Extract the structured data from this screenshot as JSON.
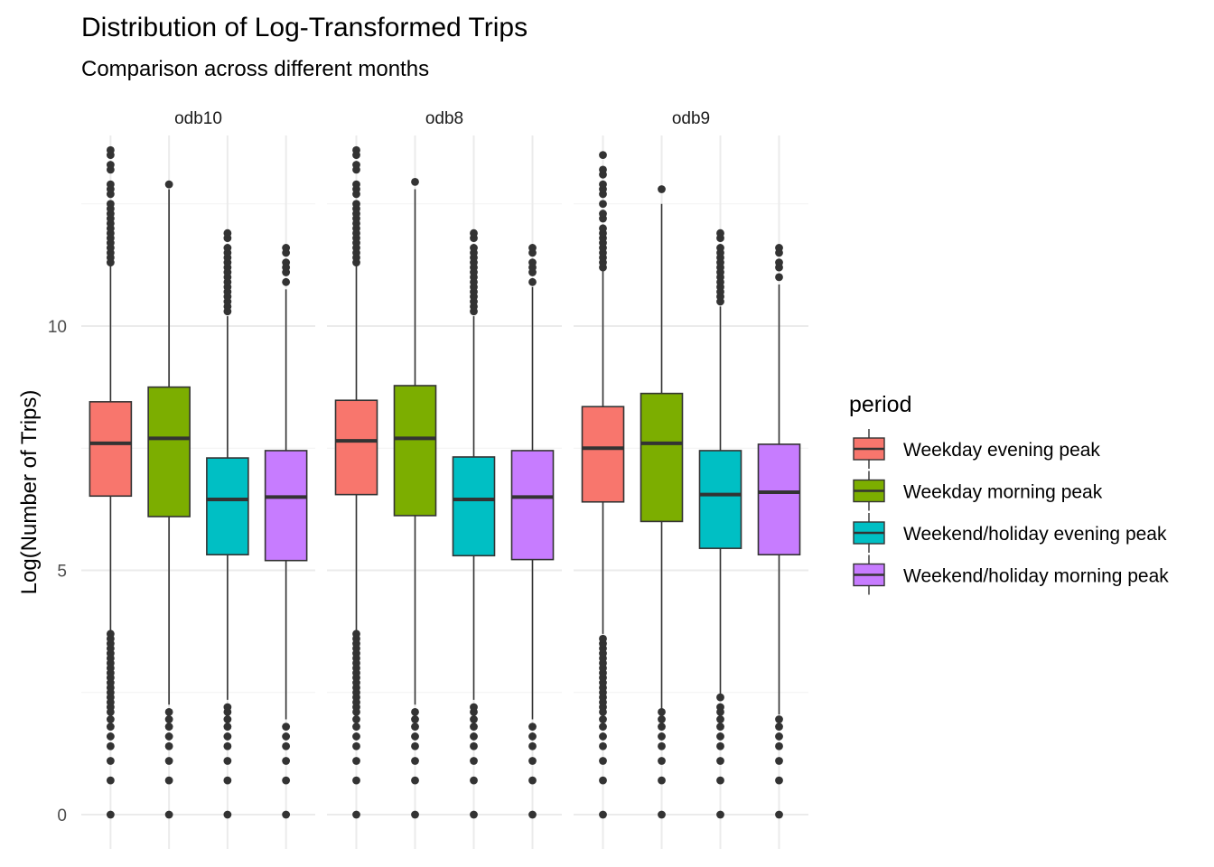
{
  "chart_data": {
    "type": "boxplot",
    "title": "Distribution of Log-Transformed Trips",
    "subtitle": "Comparison across different months",
    "ylabel": "Log(Number of Trips)",
    "xlabel": "",
    "ylim": [
      -0.65,
      14.3
    ],
    "yticks": [
      0,
      5,
      10
    ],
    "grid": true,
    "legend_position": "right",
    "legend": {
      "title": "period",
      "entries": [
        {
          "label": "Weekday evening peak",
          "color": "#F8766D"
        },
        {
          "label": "Weekday morning peak",
          "color": "#7CAE00"
        },
        {
          "label": "Weekend/holiday evening peak",
          "color": "#00BFC4"
        },
        {
          "label": "Weekend/holiday morning peak",
          "color": "#C77CFF"
        }
      ]
    },
    "facets": [
      {
        "name": "odb10",
        "boxes": [
          {
            "series": "Weekday evening peak",
            "whisker_low": 3.75,
            "q1": 6.52,
            "median": 7.6,
            "q3": 8.45,
            "whisker_high": 11.25,
            "outliers_high": [
              11.3,
              11.4,
              11.5,
              11.6,
              11.7,
              11.8,
              11.9,
              12.0,
              12.1,
              12.2,
              12.3,
              12.4,
              12.5,
              12.7,
              12.8,
              12.9,
              13.2,
              13.3,
              13.5,
              13.6
            ],
            "outliers_low": [
              0,
              0.7,
              1.1,
              1.4,
              1.6,
              1.8,
              1.95,
              2.1,
              2.2,
              2.3,
              2.4,
              2.5,
              2.6,
              2.7,
              2.8,
              2.9,
              3.0,
              3.1,
              3.2,
              3.3,
              3.4,
              3.5,
              3.6,
              3.7
            ]
          },
          {
            "series": "Weekday morning peak",
            "whisker_low": 2.25,
            "q1": 6.1,
            "median": 7.7,
            "q3": 8.75,
            "whisker_high": 12.8,
            "outliers_high": [
              12.9
            ],
            "outliers_low": [
              0,
              0.7,
              1.1,
              1.4,
              1.6,
              1.8,
              1.95,
              2.1
            ]
          },
          {
            "series": "Weekend/holiday evening peak",
            "whisker_low": 2.35,
            "q1": 5.32,
            "median": 6.45,
            "q3": 7.3,
            "whisker_high": 10.2,
            "outliers_high": [
              10.3,
              10.4,
              10.5,
              10.6,
              10.7,
              10.8,
              10.9,
              11.0,
              11.1,
              11.2,
              11.3,
              11.4,
              11.5,
              11.6,
              11.8,
              11.9
            ],
            "outliers_low": [
              0,
              0.7,
              1.1,
              1.4,
              1.6,
              1.8,
              1.95,
              2.1,
              2.2
            ]
          },
          {
            "series": "Weekend/holiday morning peak",
            "whisker_low": 1.95,
            "q1": 5.2,
            "median": 6.5,
            "q3": 7.45,
            "whisker_high": 10.75,
            "outliers_high": [
              10.9,
              11.1,
              11.2,
              11.3,
              11.5,
              11.6
            ],
            "outliers_low": [
              0,
              0.7,
              1.1,
              1.4,
              1.6,
              1.8
            ]
          }
        ]
      },
      {
        "name": "odb8",
        "boxes": [
          {
            "series": "Weekday evening peak",
            "whisker_low": 3.75,
            "q1": 6.55,
            "median": 7.65,
            "q3": 8.48,
            "whisker_high": 11.25,
            "outliers_high": [
              11.3,
              11.4,
              11.5,
              11.6,
              11.7,
              11.8,
              11.9,
              12.0,
              12.1,
              12.2,
              12.3,
              12.4,
              12.5,
              12.7,
              12.8,
              12.9,
              13.2,
              13.3,
              13.5,
              13.6
            ],
            "outliers_low": [
              0,
              0.7,
              1.1,
              1.4,
              1.6,
              1.8,
              1.95,
              2.1,
              2.2,
              2.3,
              2.4,
              2.5,
              2.6,
              2.7,
              2.8,
              2.9,
              3.0,
              3.1,
              3.2,
              3.3,
              3.4,
              3.5,
              3.6,
              3.7
            ]
          },
          {
            "series": "Weekday morning peak",
            "whisker_low": 2.25,
            "q1": 6.12,
            "median": 7.7,
            "q3": 8.78,
            "whisker_high": 12.8,
            "outliers_high": [
              12.95
            ],
            "outliers_low": [
              0,
              0.7,
              1.1,
              1.4,
              1.6,
              1.8,
              1.95,
              2.1
            ]
          },
          {
            "series": "Weekend/holiday evening peak",
            "whisker_low": 2.35,
            "q1": 5.3,
            "median": 6.45,
            "q3": 7.32,
            "whisker_high": 10.2,
            "outliers_high": [
              10.3,
              10.4,
              10.5,
              10.6,
              10.7,
              10.8,
              10.9,
              11.0,
              11.1,
              11.2,
              11.3,
              11.4,
              11.5,
              11.6,
              11.8,
              11.9
            ],
            "outliers_low": [
              0,
              0.7,
              1.1,
              1.4,
              1.6,
              1.8,
              1.95,
              2.1,
              2.2
            ]
          },
          {
            "series": "Weekend/holiday morning peak",
            "whisker_low": 1.95,
            "q1": 5.22,
            "median": 6.5,
            "q3": 7.45,
            "whisker_high": 10.8,
            "outliers_high": [
              10.9,
              11.1,
              11.2,
              11.3,
              11.5,
              11.6
            ],
            "outliers_low": [
              0,
              0.7,
              1.1,
              1.4,
              1.6,
              1.8
            ]
          }
        ]
      },
      {
        "name": "odb9",
        "boxes": [
          {
            "series": "Weekday evening peak",
            "whisker_low": 3.7,
            "q1": 6.4,
            "median": 7.5,
            "q3": 8.35,
            "whisker_high": 11.15,
            "outliers_high": [
              11.2,
              11.3,
              11.4,
              11.5,
              11.6,
              11.7,
              11.8,
              11.9,
              12.0,
              12.2,
              12.3,
              12.5,
              12.7,
              12.8,
              12.9,
              13.1,
              13.2,
              13.5
            ],
            "outliers_low": [
              0,
              0.7,
              1.1,
              1.4,
              1.6,
              1.8,
              1.95,
              2.1,
              2.2,
              2.3,
              2.4,
              2.5,
              2.6,
              2.7,
              2.8,
              2.9,
              3.0,
              3.1,
              3.2,
              3.3,
              3.4,
              3.5,
              3.6
            ]
          },
          {
            "series": "Weekday morning peak",
            "whisker_low": 2.15,
            "q1": 6.0,
            "median": 7.6,
            "q3": 8.62,
            "whisker_high": 12.5,
            "outliers_high": [
              12.8
            ],
            "outliers_low": [
              0,
              0.7,
              1.1,
              1.4,
              1.6,
              1.8,
              1.95,
              2.1
            ]
          },
          {
            "series": "Weekend/holiday evening peak",
            "whisker_low": 2.45,
            "q1": 5.45,
            "median": 6.55,
            "q3": 7.45,
            "whisker_high": 10.4,
            "outliers_high": [
              10.5,
              10.6,
              10.7,
              10.8,
              10.9,
              11.0,
              11.1,
              11.2,
              11.3,
              11.4,
              11.5,
              11.6,
              11.8,
              11.9
            ],
            "outliers_low": [
              0,
              0.7,
              1.1,
              1.4,
              1.6,
              1.8,
              1.95,
              2.1,
              2.2,
              2.4
            ]
          },
          {
            "series": "Weekend/holiday morning peak",
            "whisker_low": 2.05,
            "q1": 5.32,
            "median": 6.6,
            "q3": 7.58,
            "whisker_high": 10.85,
            "outliers_high": [
              11.0,
              11.2,
              11.3,
              11.5,
              11.6
            ],
            "outliers_low": [
              0,
              0.7,
              1.1,
              1.4,
              1.6,
              1.8,
              1.95
            ]
          }
        ]
      }
    ]
  }
}
